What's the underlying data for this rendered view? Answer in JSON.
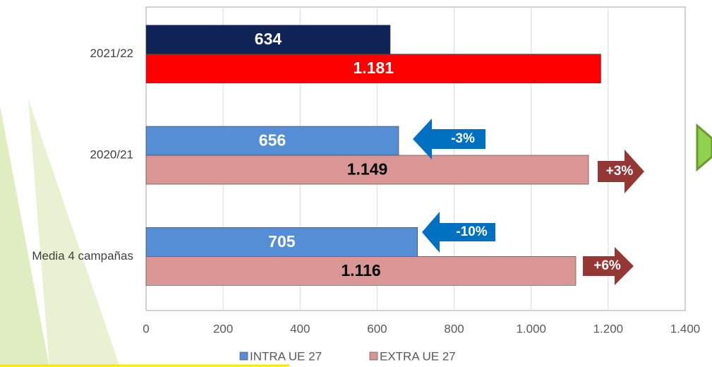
{
  "chart_data": {
    "type": "hbar",
    "categories": [
      "2021/22",
      "2020/21",
      "Media 4 campañas"
    ],
    "series": [
      {
        "name": "INTRA UE 27",
        "color": "#558ed5",
        "colors": [
          "#0f2357",
          "#558ed5",
          "#558ed5"
        ],
        "label_colors": [
          "#ffffff",
          "#ffffff",
          "#ffffff"
        ],
        "values": [
          634,
          656,
          705
        ]
      },
      {
        "name": "EXTRA UE 27",
        "color": "#d99694",
        "colors": [
          "#ff0000",
          "#d99694",
          "#d99694"
        ],
        "label_colors": [
          "#ffffff",
          "#000000",
          "#000000"
        ],
        "values": [
          1181,
          1149,
          1116
        ],
        "value_labels": [
          "1.181",
          "1.149",
          "1.116"
        ]
      }
    ],
    "xlim": [
      0,
      1400
    ],
    "xticks": [
      0,
      200,
      400,
      600,
      800,
      {
        "value": 1000,
        "label": "1.000"
      },
      {
        "value": 1200,
        "label": "1.200"
      },
      {
        "value": 1400,
        "label": "1.400"
      }
    ],
    "grid": true,
    "legend": "bottom",
    "annotations": [
      {
        "text": "-3%",
        "color": "#0070c0",
        "direction": "left"
      },
      {
        "text": "+3%",
        "color": "#953735",
        "direction": "right"
      },
      {
        "text": "-10%",
        "color": "#0070c0",
        "direction": "left"
      },
      {
        "text": "+6%",
        "color": "#953735",
        "direction": "right"
      }
    ]
  }
}
